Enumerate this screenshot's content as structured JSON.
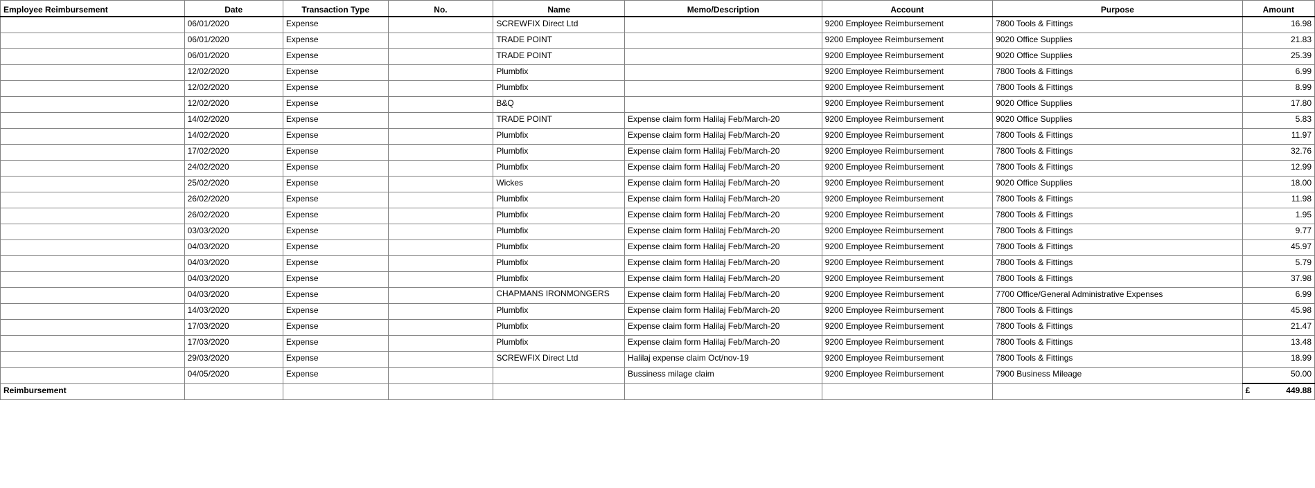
{
  "columns": {
    "group": "Employee Reimbursement",
    "date": "Date",
    "type": "Transaction Type",
    "no": "No.",
    "name": "Name",
    "memo": "Memo/Description",
    "account": "Account",
    "purpose": "Purpose",
    "amount": "Amount"
  },
  "rows": [
    {
      "date": "06/01/2020",
      "type": "Expense",
      "no": "",
      "name": "SCREWFIX Direct Ltd",
      "memo": "",
      "account": "9200 Employee Reimbursement",
      "purpose": "7800 Tools & Fittings",
      "amount": "16.98"
    },
    {
      "date": "06/01/2020",
      "type": "Expense",
      "no": "",
      "name": "TRADE POINT",
      "memo": "",
      "account": "9200 Employee Reimbursement",
      "purpose": "9020 Office Supplies",
      "amount": "21.83"
    },
    {
      "date": "06/01/2020",
      "type": "Expense",
      "no": "",
      "name": "TRADE POINT",
      "memo": "",
      "account": "9200 Employee Reimbursement",
      "purpose": "9020 Office Supplies",
      "amount": "25.39"
    },
    {
      "date": "12/02/2020",
      "type": "Expense",
      "no": "",
      "name": "Plumbfix",
      "memo": "",
      "account": "9200 Employee Reimbursement",
      "purpose": "7800 Tools & Fittings",
      "amount": "6.99"
    },
    {
      "date": "12/02/2020",
      "type": "Expense",
      "no": "",
      "name": "Plumbfix",
      "memo": "",
      "account": "9200 Employee Reimbursement",
      "purpose": "7800 Tools & Fittings",
      "amount": "8.99"
    },
    {
      "date": "12/02/2020",
      "type": "Expense",
      "no": "",
      "name": "B&Q",
      "memo": "",
      "account": "9200 Employee Reimbursement",
      "purpose": "9020 Office Supplies",
      "amount": "17.80"
    },
    {
      "date": "14/02/2020",
      "type": "Expense",
      "no": "",
      "name": "TRADE POINT",
      "memo": "Expense claim form Halilaj Feb/March-20",
      "account": "9200 Employee Reimbursement",
      "purpose": "9020 Office Supplies",
      "amount": "5.83"
    },
    {
      "date": "14/02/2020",
      "type": "Expense",
      "no": "",
      "name": "Plumbfix",
      "memo": "Expense claim form Halilaj Feb/March-20",
      "account": "9200 Employee Reimbursement",
      "purpose": "7800 Tools & Fittings",
      "amount": "11.97"
    },
    {
      "date": "17/02/2020",
      "type": "Expense",
      "no": "",
      "name": "Plumbfix",
      "memo": "Expense claim form Halilaj Feb/March-20",
      "account": "9200 Employee Reimbursement",
      "purpose": "7800 Tools & Fittings",
      "amount": "32.76"
    },
    {
      "date": "24/02/2020",
      "type": "Expense",
      "no": "",
      "name": "Plumbfix",
      "memo": "Expense claim form Halilaj Feb/March-20",
      "account": "9200 Employee Reimbursement",
      "purpose": "7800 Tools & Fittings",
      "amount": "12.99"
    },
    {
      "date": "25/02/2020",
      "type": "Expense",
      "no": "",
      "name": "Wickes",
      "memo": "Expense claim form Halilaj Feb/March-20",
      "account": "9200 Employee Reimbursement",
      "purpose": "9020 Office Supplies",
      "amount": "18.00"
    },
    {
      "date": "26/02/2020",
      "type": "Expense",
      "no": "",
      "name": "Plumbfix",
      "memo": "Expense claim form Halilaj Feb/March-20",
      "account": "9200 Employee Reimbursement",
      "purpose": "7800 Tools & Fittings",
      "amount": "11.98"
    },
    {
      "date": "26/02/2020",
      "type": "Expense",
      "no": "",
      "name": "Plumbfix",
      "memo": "Expense claim form Halilaj Feb/March-20",
      "account": "9200 Employee Reimbursement",
      "purpose": "7800 Tools & Fittings",
      "amount": "1.95"
    },
    {
      "date": "03/03/2020",
      "type": "Expense",
      "no": "",
      "name": "Plumbfix",
      "memo": "Expense claim form Halilaj Feb/March-20",
      "account": "9200 Employee Reimbursement",
      "purpose": "7800 Tools & Fittings",
      "amount": "9.77"
    },
    {
      "date": "04/03/2020",
      "type": "Expense",
      "no": "",
      "name": "Plumbfix",
      "memo": "Expense claim form Halilaj Feb/March-20",
      "account": "9200 Employee Reimbursement",
      "purpose": "7800 Tools & Fittings",
      "amount": "45.97"
    },
    {
      "date": "04/03/2020",
      "type": "Expense",
      "no": "",
      "name": "Plumbfix",
      "memo": "Expense claim form Halilaj Feb/March-20",
      "account": "9200 Employee Reimbursement",
      "purpose": "7800 Tools & Fittings",
      "amount": "5.79"
    },
    {
      "date": "04/03/2020",
      "type": "Expense",
      "no": "",
      "name": "Plumbfix",
      "memo": "Expense claim form Halilaj Feb/March-20",
      "account": "9200 Employee Reimbursement",
      "purpose": "7800 Tools & Fittings",
      "amount": "37.98"
    },
    {
      "date": "04/03/2020",
      "type": "Expense",
      "no": "",
      "name": "CHAPMANS IRONMONGERS",
      "memo": "Expense claim form Halilaj Feb/March-20",
      "account": "9200 Employee Reimbursement",
      "purpose": "7700 Office/General Administrative Expenses",
      "amount": "6.99",
      "wrapName": true
    },
    {
      "date": "14/03/2020",
      "type": "Expense",
      "no": "",
      "name": "Plumbfix",
      "memo": "Expense claim form Halilaj Feb/March-20",
      "account": "9200 Employee Reimbursement",
      "purpose": "7800 Tools & Fittings",
      "amount": "45.98"
    },
    {
      "date": "17/03/2020",
      "type": "Expense",
      "no": "",
      "name": "Plumbfix",
      "memo": "Expense claim form Halilaj Feb/March-20",
      "account": "9200 Employee Reimbursement",
      "purpose": "7800 Tools & Fittings",
      "amount": "21.47"
    },
    {
      "date": "17/03/2020",
      "type": "Expense",
      "no": "",
      "name": "Plumbfix",
      "memo": "Expense claim form Halilaj Feb/March-20",
      "account": "9200 Employee Reimbursement",
      "purpose": "7800 Tools & Fittings",
      "amount": "13.48"
    },
    {
      "date": "29/03/2020",
      "type": "Expense",
      "no": "",
      "name": "SCREWFIX Direct Ltd",
      "memo": "Halilaj expense claim Oct/nov-19",
      "account": "9200 Employee Reimbursement",
      "purpose": "7800 Tools & Fittings",
      "amount": "18.99"
    },
    {
      "date": "04/05/2020",
      "type": "Expense",
      "no": "",
      "name": "",
      "memo": "Bussiness milage claim",
      "account": "9200 Employee Reimbursement",
      "purpose": "7900 Business Mileage",
      "amount": "50.00"
    }
  ],
  "total": {
    "label": "Reimbursement",
    "currency": "£",
    "amount": "449.88"
  },
  "colWidths": {
    "group": "14%",
    "date": "7.5%",
    "type": "8%",
    "no": "8%",
    "name": "10%",
    "memo": "15%",
    "account": "13%",
    "purpose": "19%",
    "amount": "5.5%"
  }
}
